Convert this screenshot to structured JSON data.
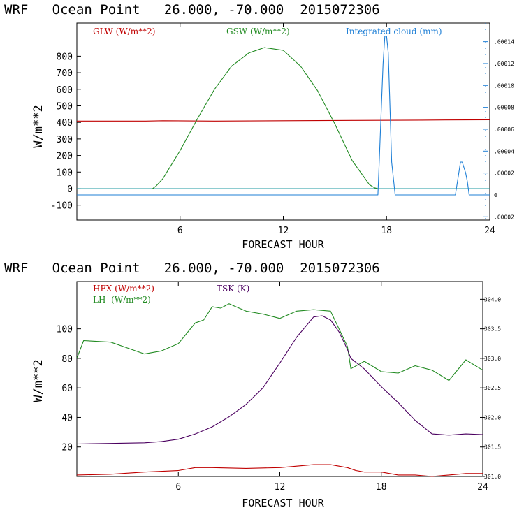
{
  "chart_data": [
    {
      "type": "line",
      "title": "WRF   Ocean Point   26.000, -70.000  2015072306",
      "xlabel": "FORECAST HOUR",
      "ylabel": "W/m**2",
      "xlim": [
        0,
        24
      ],
      "ylim": [
        -190,
        1000
      ],
      "xticks": [
        6,
        12,
        18,
        24
      ],
      "yticks": [
        -100,
        0,
        100,
        200,
        300,
        400,
        500,
        600,
        700,
        800
      ],
      "right_axis": {
        "label": "Integrated cloud (mm)",
        "color": "#1e7fd6",
        "ylim": [
          -2.3e-05,
          0.000157
        ],
        "ticks": [
          -2e-05,
          0,
          2e-05,
          4e-05,
          6e-05,
          8e-05,
          0.0001,
          0.00012,
          0.00014
        ],
        "tick_labels": [
          ".00002",
          "0",
          ".00002",
          ".00004",
          ".00006",
          ".00008",
          ".00010",
          ".00012",
          ".00014"
        ]
      },
      "series": [
        {
          "name": "GLW (W/m**2)",
          "color": "#c00000",
          "axis": "left",
          "x": [
            0,
            4,
            5,
            8,
            12,
            16,
            20,
            24
          ],
          "values": [
            408,
            408,
            410,
            408,
            410,
            412,
            414,
            416
          ]
        },
        {
          "name": "GSW (W/m**2)",
          "color": "#228b22",
          "axis": "left",
          "x": [
            4.4,
            4.6,
            5,
            6,
            7,
            8,
            9,
            10,
            10.9,
            12,
            13,
            14,
            15,
            16,
            17,
            17.3,
            17.5
          ],
          "values": [
            0,
            15,
            60,
            230,
            420,
            600,
            740,
            820,
            852,
            835,
            740,
            590,
            390,
            170,
            25,
            5,
            0
          ]
        },
        {
          "name": "Integrated cloud (mm)",
          "color": "#1e7fd6",
          "axis": "right",
          "x": [
            0,
            17.5,
            17.6,
            17.8,
            17.9,
            18.0,
            18.1,
            18.2,
            18.3,
            18.5,
            22.0,
            22.2,
            22.3,
            22.4,
            22.6,
            22.7,
            22.8,
            24
          ],
          "values": [
            0,
            0,
            4e-05,
            0.00012,
            0.000145,
            0.000145,
            0.00013,
            8e-05,
            3e-05,
            0,
            0,
            2e-05,
            3e-05,
            3e-05,
            2e-05,
            1.2e-05,
            0,
            0
          ]
        }
      ]
    },
    {
      "type": "line",
      "title": "WRF   Ocean Point   26.000, -70.000  2015072306",
      "xlabel": "FORECAST HOUR",
      "ylabel": "W/m**2",
      "xlim": [
        0,
        24
      ],
      "ylim": [
        0,
        132
      ],
      "xticks": [
        6,
        12,
        18,
        24
      ],
      "yticks": [
        20,
        40,
        60,
        80,
        100
      ],
      "right_axis": {
        "label": "TSK (K)",
        "color": "#000000",
        "ylim": [
          301.0,
          304.3
        ],
        "ticks": [
          301.0,
          301.5,
          302.0,
          302.5,
          303.0,
          303.5,
          304.0
        ],
        "tick_labels": [
          "301.0",
          "301.5",
          "302.0",
          "302.5",
          "303.0",
          "303.5",
          "304.0"
        ]
      },
      "series": [
        {
          "name": "HFX (W/m**2)",
          "color": "#c00000",
          "axis": "left",
          "x": [
            0,
            2,
            4,
            6,
            7,
            8,
            10,
            12,
            14,
            15,
            16,
            16.5,
            17,
            18,
            19,
            20,
            21,
            22,
            23,
            24
          ],
          "values": [
            1,
            1.5,
            3,
            4,
            6,
            6,
            5.5,
            6,
            8,
            8,
            6,
            4,
            3,
            3,
            1,
            1,
            0,
            1,
            2,
            2
          ]
        },
        {
          "name": "LH  (W/m**2)",
          "color": "#228b22",
          "axis": "left",
          "x": [
            0,
            0.4,
            2,
            3,
            4,
            5,
            6,
            6.5,
            7,
            7.5,
            8,
            8.5,
            9,
            10,
            11,
            12,
            13,
            14,
            15,
            15.5,
            16,
            16.2,
            17,
            18,
            19,
            20,
            21,
            22,
            23,
            24
          ],
          "values": [
            80,
            92,
            91,
            87,
            83,
            85,
            90,
            97,
            104,
            106,
            115,
            114,
            117,
            112,
            110,
            107,
            112,
            113,
            112,
            100,
            88,
            73,
            78,
            71,
            70,
            75,
            72,
            65,
            79,
            72
          ]
        },
        {
          "name": "TSK (K)",
          "color": "#4b0060",
          "axis": "right",
          "x": [
            0,
            2,
            4,
            5,
            6,
            7,
            8,
            9,
            10,
            11,
            12,
            13,
            14,
            14.5,
            15,
            15.5,
            16,
            16.2,
            17,
            18,
            19,
            20,
            21,
            22,
            23,
            24
          ],
          "values": [
            301.55,
            301.56,
            301.57,
            301.59,
            301.63,
            301.72,
            301.84,
            302.01,
            302.22,
            302.5,
            302.92,
            303.36,
            303.7,
            303.72,
            303.65,
            303.45,
            303.15,
            303.0,
            302.82,
            302.52,
            302.25,
            301.95,
            301.72,
            301.7,
            301.72,
            301.71
          ]
        }
      ]
    }
  ]
}
